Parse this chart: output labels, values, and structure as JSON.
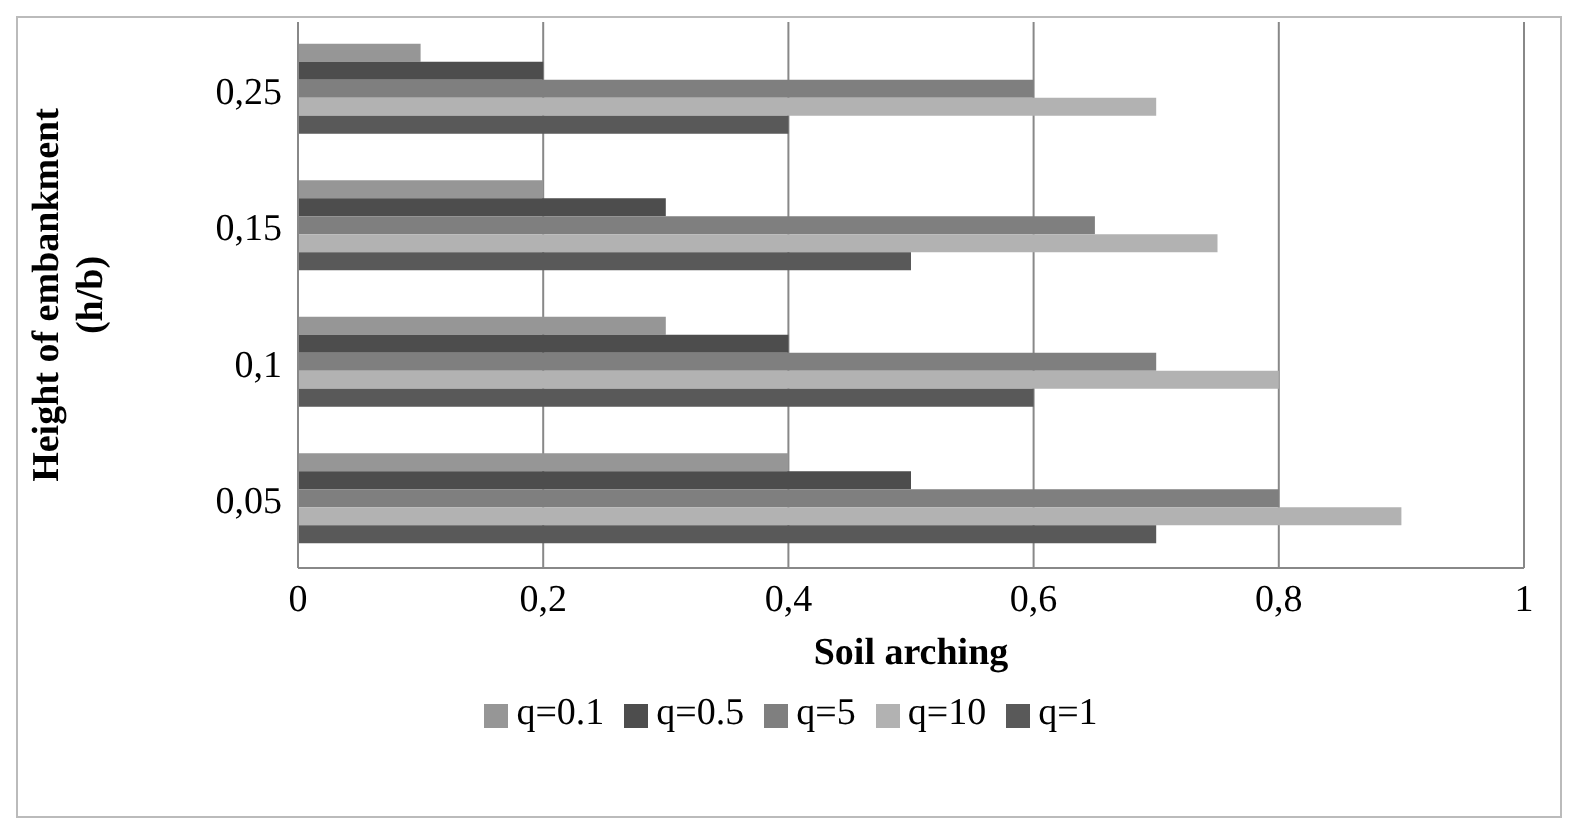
{
  "chart_data": {
    "type": "bar",
    "orientation": "horizontal",
    "xlabel": "Soil arching",
    "ylabel": "Height of embankment (h/b)",
    "categories": [
      "0,25",
      "0,15",
      "0,1",
      "0,05"
    ],
    "series": [
      {
        "name": "q=0.1",
        "color": "#969696",
        "values": [
          0.1,
          0.2,
          0.3,
          0.4
        ]
      },
      {
        "name": "q=0.5",
        "color": "#4d4d4d",
        "values": [
          0.2,
          0.3,
          0.4,
          0.5
        ]
      },
      {
        "name": "q=5",
        "color": "#7f7f7f",
        "values": [
          0.6,
          0.65,
          0.7,
          0.8
        ]
      },
      {
        "name": "q=10",
        "color": "#b2b2b2",
        "values": [
          0.7,
          0.75,
          0.8,
          0.9
        ]
      },
      {
        "name": "q=1",
        "color": "#595959",
        "values": [
          0.4,
          0.5,
          0.6,
          0.7
        ]
      }
    ],
    "xlim": [
      0,
      1
    ],
    "xticks": [
      {
        "value": 0,
        "label": "0"
      },
      {
        "value": 0.2,
        "label": "0,2"
      },
      {
        "value": 0.4,
        "label": "0,4"
      },
      {
        "value": 0.6,
        "label": "0,6"
      },
      {
        "value": 0.8,
        "label": "0,8"
      },
      {
        "value": 1,
        "label": "1"
      }
    ],
    "grid": "x",
    "legend": "bottom"
  }
}
